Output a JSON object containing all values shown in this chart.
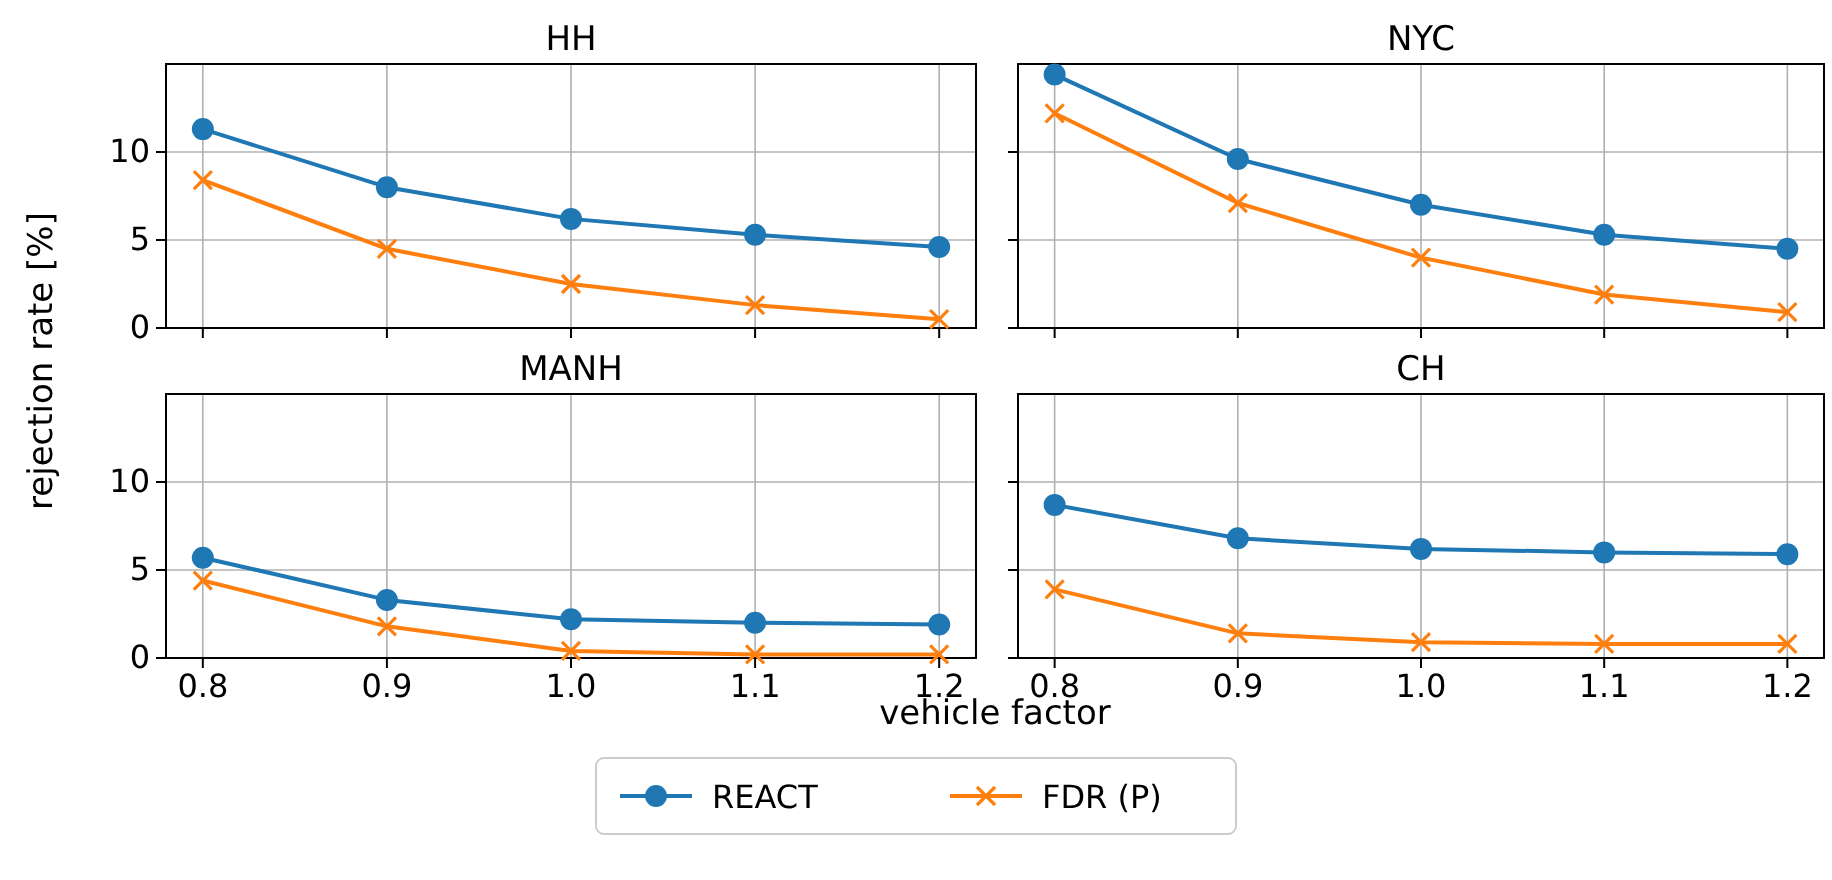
{
  "chart_data": [
    {
      "type": "line",
      "title": "HH",
      "ylabel": "rejection rate [%]",
      "x": [
        0.8,
        0.9,
        1.0,
        1.1,
        1.2
      ],
      "xlim": [
        0.78,
        1.22
      ],
      "xticks": [
        0.8,
        0.9,
        1,
        1.1,
        1.2
      ],
      "ylim": [
        0,
        15
      ],
      "yticks": [
        0,
        5,
        10
      ],
      "grid": true,
      "tick_labels": "y",
      "legend": "bottom",
      "series": [
        {
          "name": "REACT",
          "color": "#1f77b4",
          "marker": "circle",
          "values": [
            11.3,
            8.0,
            6.2,
            5.3,
            4.6
          ]
        },
        {
          "name": "FDR (P)",
          "color": "#ff7f0e",
          "marker": "cross",
          "values": [
            8.4,
            4.5,
            2.5,
            1.3,
            0.5
          ]
        }
      ]
    },
    {
      "type": "line",
      "title": "NYC",
      "x": [
        0.8,
        0.9,
        1.0,
        1.1,
        1.2
      ],
      "xlim": [
        0.78,
        1.22
      ],
      "xticks": [
        0.8,
        0.9,
        1,
        1.1,
        1.2
      ],
      "ylim": [
        0,
        15
      ],
      "yticks": [
        0,
        5,
        10
      ],
      "grid": true,
      "tick_labels": false,
      "series": [
        {
          "color": "#1f77b4",
          "marker": "circle",
          "values": [
            14.4,
            9.6,
            7.0,
            5.3,
            4.5
          ]
        },
        {
          "color": "#ff7f0e",
          "marker": "cross",
          "values": [
            12.2,
            7.1,
            4.0,
            1.9,
            0.9
          ]
        }
      ]
    },
    {
      "type": "line",
      "title": "MANH",
      "xlabel": "vehicle factor",
      "x": [
        0.8,
        0.9,
        1.0,
        1.1,
        1.2
      ],
      "xlim": [
        0.78,
        1.22
      ],
      "xticks": [
        0.8,
        0.9,
        {
          "value": 1,
          "label": "1.0"
        },
        1.1,
        1.2
      ],
      "ylim": [
        0,
        15
      ],
      "yticks": [
        0,
        5,
        10
      ],
      "grid": true,
      "series": [
        {
          "color": "#1f77b4",
          "marker": "circle",
          "values": [
            5.7,
            3.3,
            2.2,
            2.0,
            1.9
          ]
        },
        {
          "color": "#ff7f0e",
          "marker": "cross",
          "values": [
            4.4,
            1.8,
            0.4,
            0.2,
            0.2
          ]
        }
      ]
    },
    {
      "type": "line",
      "title": "CH",
      "x": [
        0.8,
        0.9,
        1.0,
        1.1,
        1.2
      ],
      "xlim": [
        0.78,
        1.22
      ],
      "xticks": [
        0.8,
        0.9,
        {
          "value": 1,
          "label": "1.0"
        },
        1.1,
        1.2
      ],
      "ylim": [
        0,
        15
      ],
      "yticks": [
        0,
        5,
        10
      ],
      "grid": true,
      "tick_labels": "x",
      "series": [
        {
          "color": "#1f77b4",
          "marker": "circle",
          "values": [
            8.7,
            6.8,
            6.2,
            6.0,
            5.9
          ]
        },
        {
          "color": "#ff7f0e",
          "marker": "cross",
          "values": [
            3.9,
            1.4,
            0.9,
            0.8,
            0.8
          ]
        }
      ]
    }
  ]
}
